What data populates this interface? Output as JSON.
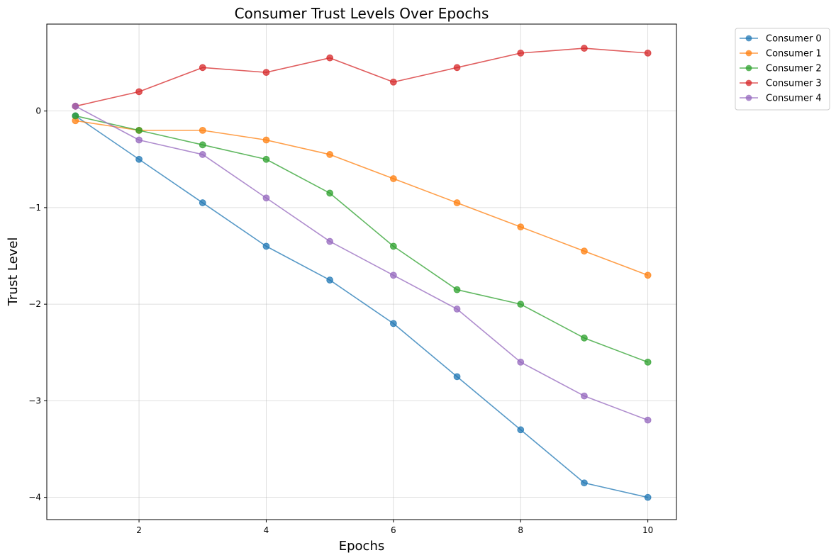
{
  "chart_data": {
    "type": "line",
    "title": "Consumer Trust Levels Over Epochs",
    "xlabel": "Epochs",
    "ylabel": "Trust Level",
    "x": [
      1,
      2,
      3,
      4,
      5,
      6,
      7,
      8,
      9,
      10
    ],
    "xlim": [
      0.55,
      10.45
    ],
    "ylim": [
      -4.23,
      0.9
    ],
    "xticks": [
      2,
      4,
      6,
      8,
      10
    ],
    "yticks": [
      0,
      -1,
      -2,
      -3,
      -4
    ],
    "xtick_labels": [
      "2",
      "4",
      "6",
      "8",
      "10"
    ],
    "ytick_labels": [
      "0",
      "−1",
      "−2",
      "−3",
      "−4"
    ],
    "grid": true,
    "legend_position": "outside-top-right",
    "series": [
      {
        "name": "Consumer 0",
        "color": "#1f77b4",
        "values": [
          -0.05,
          -0.5,
          -0.95,
          -1.4,
          -1.75,
          -2.2,
          -2.75,
          -3.3,
          -3.85,
          -4.0
        ]
      },
      {
        "name": "Consumer 1",
        "color": "#ff7f0e",
        "values": [
          -0.1,
          -0.2,
          -0.2,
          -0.3,
          -0.45,
          -0.7,
          -0.95,
          -1.2,
          -1.45,
          -1.7
        ]
      },
      {
        "name": "Consumer 2",
        "color": "#2ca02c",
        "values": [
          -0.05,
          -0.2,
          -0.35,
          -0.5,
          -0.85,
          -1.4,
          -1.85,
          -2.0,
          -2.35,
          -2.6
        ]
      },
      {
        "name": "Consumer 3",
        "color": "#d62728",
        "values": [
          0.05,
          0.2,
          0.45,
          0.4,
          0.55,
          0.3,
          0.45,
          0.6,
          0.65,
          0.6
        ]
      },
      {
        "name": "Consumer 4",
        "color": "#9467bd",
        "values": [
          0.05,
          -0.3,
          -0.45,
          -0.9,
          -1.35,
          -1.7,
          -2.05,
          -2.6,
          -2.95,
          -3.2
        ]
      }
    ]
  }
}
